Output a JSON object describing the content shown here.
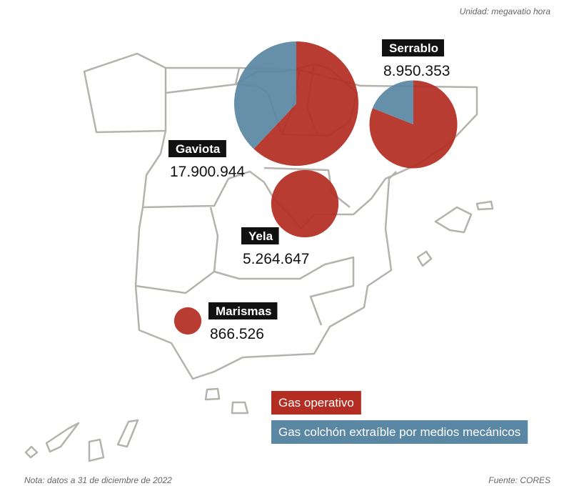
{
  "unit": "Unidad: megavatio hora",
  "sites": [
    {
      "name": "Gaviota",
      "value": 17900944,
      "value_label": "17.900.944",
      "gas_operativo_pct": 62
    },
    {
      "name": "Serrablo",
      "value": 8950353,
      "value_label": "8.950.353",
      "gas_operativo_pct": 81
    },
    {
      "name": "Yela",
      "value": 5264647,
      "value_label": "5.264.647",
      "gas_operativo_pct": 100
    },
    {
      "name": "Marismas",
      "value": 866526,
      "value_label": "866.526",
      "gas_operativo_pct": 100
    }
  ],
  "legend": [
    {
      "name": "Gas operativo",
      "color": "#b32d22"
    },
    {
      "name": "Gas colchón extraíble por medios mecánicos",
      "color": "#5a87a3"
    }
  ],
  "note": "Nota: datos a 31 de diciembre de 2022",
  "source": "Fuente: CORES"
}
